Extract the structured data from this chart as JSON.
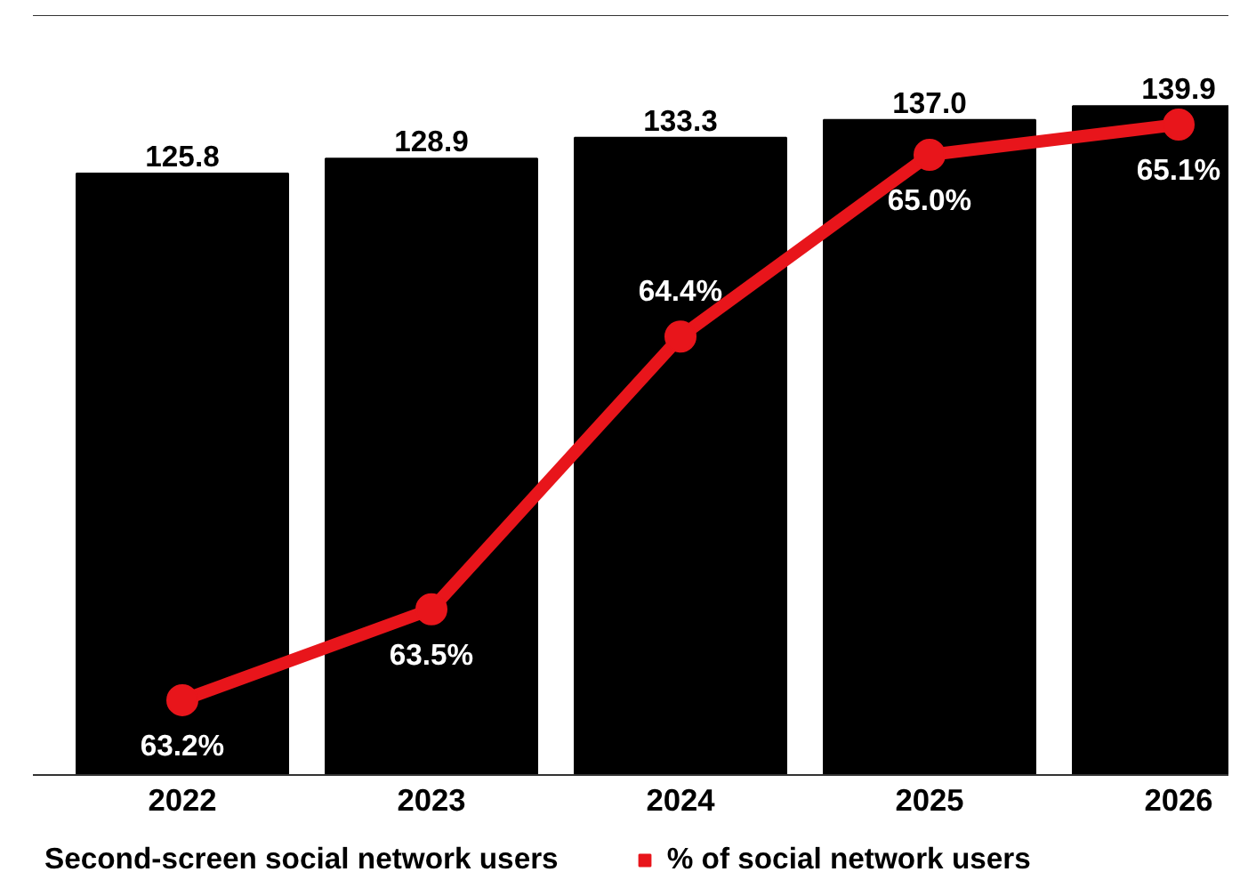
{
  "chart_data": {
    "type": "bar",
    "categories": [
      "2022",
      "2023",
      "2024",
      "2025",
      "2026"
    ],
    "series": [
      {
        "name": "Second-screen social network users",
        "color": "#000000",
        "values": [
          125.8,
          128.9,
          133.3,
          137.0,
          139.9
        ],
        "value_labels": [
          "125.8",
          "128.9",
          "133.3",
          "137.0",
          "139.9"
        ]
      },
      {
        "name": "% of social network users",
        "type": "line",
        "axis": "y2",
        "color": "#e8151b",
        "marker": "circle",
        "values": [
          63.2,
          63.5,
          64.4,
          65.0,
          65.1
        ],
        "value_labels": [
          "63.2%",
          "63.5%",
          "64.4%",
          "65.0%",
          "65.1%"
        ]
      }
    ],
    "tick_labels": "x",
    "legend": "bottom"
  }
}
